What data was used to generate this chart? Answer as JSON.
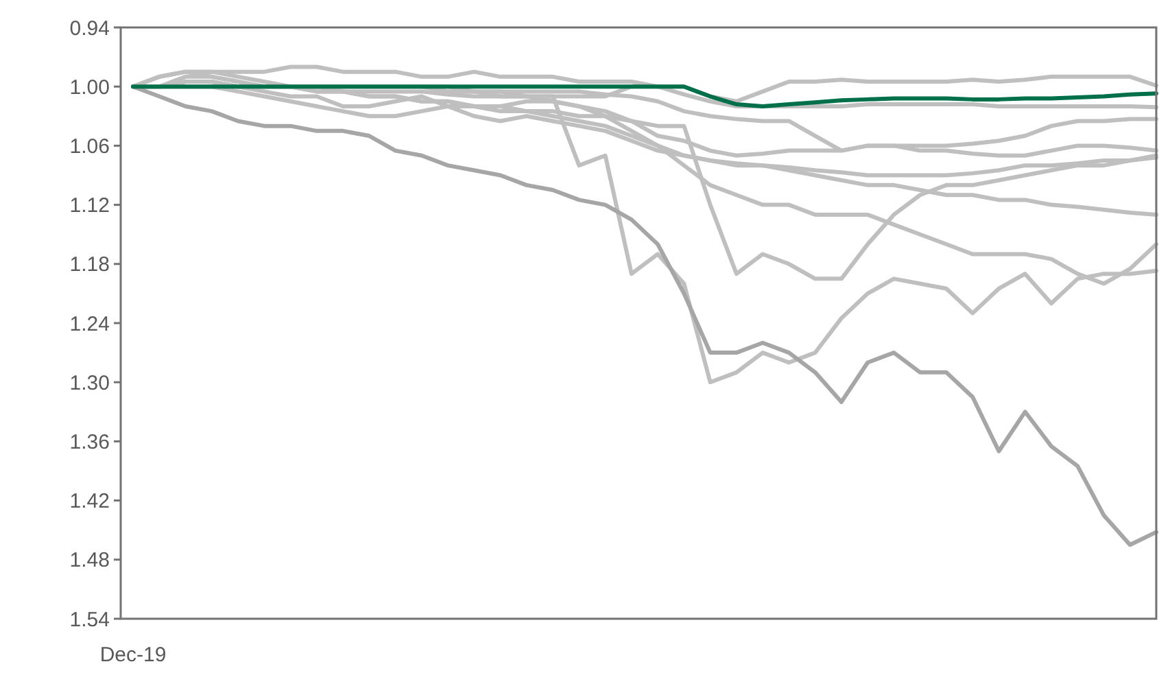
{
  "chart_data": {
    "type": "line",
    "categories": [
      "Dec-19",
      null,
      null,
      null,
      null,
      null,
      null,
      null,
      null,
      null,
      null,
      null,
      null,
      null,
      null,
      null,
      null,
      null,
      null,
      null,
      null,
      null,
      null,
      null,
      null,
      null,
      null,
      null,
      null,
      null,
      null,
      null,
      null,
      null,
      null,
      null,
      null,
      null,
      null,
      null
    ],
    "ylim": [
      1.54,
      0.94
    ],
    "yticks": [
      0.94,
      {
        "value": 1,
        "label": "1.00"
      },
      1.06,
      1.12,
      1.18,
      1.24,
      {
        "value": 1.3,
        "label": "1.30"
      },
      1.36,
      1.42,
      1.48,
      1.54
    ],
    "grid": false,
    "marker": "none",
    "line_style": "solid",
    "series": [
      {
        "color": "#bfbfbf",
        "values": [
          1.0,
          0.99,
          0.985,
          0.985,
          0.985,
          0.985,
          0.98,
          0.98,
          0.985,
          0.985,
          0.985,
          0.99,
          0.99,
          0.985,
          0.99,
          0.99,
          0.99,
          0.995,
          0.995,
          0.995,
          1.0,
          1.0,
          1.01,
          1.015,
          1.005,
          0.995,
          0.995,
          0.993,
          0.995,
          0.995,
          0.995,
          0.995,
          0.993,
          0.995,
          0.993,
          0.99,
          0.99,
          0.99,
          0.99,
          0.999
        ]
      },
      {
        "color": "#bfbfbf",
        "values": [
          1.0,
          1.0,
          0.995,
          0.995,
          1.0,
          1.0,
          1.0,
          1.0,
          1.005,
          1.005,
          1.005,
          1.005,
          1.008,
          1.01,
          1.01,
          1.01,
          1.01,
          1.01,
          1.01,
          1.0,
          1.0,
          1.008,
          1.015,
          1.02,
          1.02,
          1.02,
          1.02,
          1.02,
          1.018,
          1.018,
          1.018,
          1.018,
          1.018,
          1.02,
          1.02,
          1.02,
          1.02,
          1.02,
          1.02,
          1.021
        ]
      },
      {
        "color": "#bfbfbf",
        "values": [
          1.0,
          1.0,
          0.99,
          0.99,
          0.995,
          1.0,
          1.0,
          1.0,
          1.0,
          1.0,
          1.0,
          1.0,
          1.005,
          1.005,
          1.005,
          1.005,
          1.005,
          1.005,
          1.008,
          1.01,
          1.015,
          1.025,
          1.03,
          1.033,
          1.035,
          1.035,
          1.05,
          1.065,
          1.06,
          1.06,
          1.06,
          1.06,
          1.058,
          1.055,
          1.05,
          1.04,
          1.035,
          1.035,
          1.033,
          1.033
        ]
      },
      {
        "color": "#bfbfbf",
        "values": [
          1.0,
          1.0,
          1.0,
          1.0,
          1.0,
          1.005,
          1.01,
          1.01,
          1.02,
          1.02,
          1.015,
          1.01,
          1.02,
          1.02,
          1.02,
          1.015,
          1.015,
          1.02,
          1.025,
          1.035,
          1.05,
          1.055,
          1.065,
          1.07,
          1.068,
          1.065,
          1.065,
          1.065,
          1.06,
          1.06,
          1.065,
          1.065,
          1.068,
          1.07,
          1.07,
          1.065,
          1.06,
          1.06,
          1.062,
          1.065
        ]
      },
      {
        "color": "#bfbfbf",
        "values": [
          1.0,
          1.0,
          1.0,
          1.0,
          1.005,
          1.01,
          1.015,
          1.02,
          1.025,
          1.03,
          1.03,
          1.025,
          1.02,
          1.03,
          1.035,
          1.03,
          1.035,
          1.04,
          1.045,
          1.055,
          1.065,
          1.07,
          1.075,
          1.078,
          1.08,
          1.082,
          1.085,
          1.087,
          1.09,
          1.09,
          1.09,
          1.09,
          1.088,
          1.085,
          1.08,
          1.08,
          1.078,
          1.075,
          1.075,
          1.072
        ]
      },
      {
        "color": "#bfbfbf",
        "values": [
          1.0,
          1.0,
          1.0,
          1.0,
          1.0,
          1.0,
          1.0,
          1.005,
          1.005,
          1.01,
          1.01,
          1.015,
          1.015,
          1.02,
          1.025,
          1.025,
          1.03,
          1.035,
          1.04,
          1.05,
          1.06,
          1.07,
          1.075,
          1.08,
          1.08,
          1.085,
          1.09,
          1.095,
          1.1,
          1.1,
          1.105,
          1.11,
          1.11,
          1.115,
          1.115,
          1.12,
          1.122,
          1.125,
          1.128,
          1.13
        ]
      },
      {
        "color": "#bfbfbf",
        "values": [
          1.0,
          0.99,
          0.985,
          0.985,
          0.99,
          0.995,
          1.0,
          1.0,
          1.0,
          1.0,
          1.0,
          1.0,
          1.005,
          1.005,
          1.01,
          1.01,
          1.015,
          1.02,
          1.03,
          1.045,
          1.06,
          1.08,
          1.1,
          1.11,
          1.12,
          1.12,
          1.13,
          1.13,
          1.13,
          1.14,
          1.15,
          1.16,
          1.17,
          1.17,
          1.17,
          1.175,
          1.19,
          1.2,
          1.185,
          1.16
        ]
      },
      {
        "color": "#bfbfbf",
        "values": [
          1.0,
          0.99,
          0.985,
          0.99,
          0.995,
          1.0,
          1.0,
          1.0,
          1.0,
          1.0,
          1.0,
          1.0,
          1.0,
          1.005,
          1.005,
          1.01,
          1.01,
          1.08,
          1.07,
          1.19,
          1.17,
          1.2,
          1.3,
          1.29,
          1.27,
          1.28,
          1.27,
          1.235,
          1.21,
          1.195,
          1.2,
          1.205,
          1.23,
          1.205,
          1.19,
          1.22,
          1.195,
          1.19,
          1.19,
          1.187
        ]
      },
      {
        "color": "#bfbfbf",
        "values": [
          1.0,
          1.0,
          0.995,
          0.995,
          1.0,
          1.0,
          1.0,
          1.005,
          1.005,
          1.01,
          1.01,
          1.015,
          1.015,
          1.02,
          1.02,
          1.025,
          1.025,
          1.03,
          1.03,
          1.035,
          1.04,
          1.04,
          1.12,
          1.19,
          1.17,
          1.18,
          1.195,
          1.195,
          1.16,
          1.13,
          1.11,
          1.1,
          1.1,
          1.095,
          1.09,
          1.085,
          1.08,
          1.08,
          1.075,
          1.07
        ]
      },
      {
        "color": "#a6a6a6",
        "values": [
          1.0,
          1.01,
          1.02,
          1.025,
          1.035,
          1.04,
          1.04,
          1.045,
          1.045,
          1.05,
          1.065,
          1.07,
          1.08,
          1.085,
          1.09,
          1.1,
          1.105,
          1.115,
          1.12,
          1.135,
          1.16,
          1.21,
          1.27,
          1.27,
          1.26,
          1.27,
          1.29,
          1.32,
          1.28,
          1.27,
          1.29,
          1.29,
          1.315,
          1.37,
          1.33,
          1.365,
          1.385,
          1.435,
          1.465,
          1.452
        ]
      },
      {
        "color": "#00704a",
        "values": [
          1.0,
          1.0,
          1.0,
          1.0,
          1.0,
          1.0,
          1.0,
          1.0,
          1.0,
          1.0,
          1.0,
          1.0,
          1.0,
          1.0,
          1.0,
          1.0,
          1.0,
          1.0,
          1.0,
          1.0,
          1.0,
          1.0,
          1.01,
          1.018,
          1.02,
          1.018,
          1.016,
          1.014,
          1.013,
          1.012,
          1.012,
          1.012,
          1.013,
          1.013,
          1.012,
          1.012,
          1.011,
          1.01,
          1.008,
          1.007
        ]
      }
    ]
  }
}
